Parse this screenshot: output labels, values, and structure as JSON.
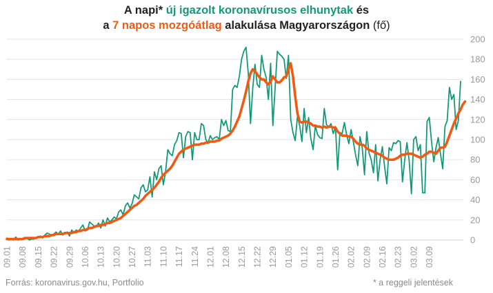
{
  "title": {
    "line1_a": "A napi* ",
    "line1_b": "új igazolt koronavírusos elhunytak",
    "line1_c": " és",
    "line2_a": "a ",
    "line2_b": "7 napos mozgóátlag",
    "line2_c": " alakulása Magyarországon",
    "line2_d": " (fő)"
  },
  "footer": {
    "source": "Forrás: koronavirus.gov.hu, Portfolio",
    "note": "* a reggeli jelentések"
  },
  "chart_data": {
    "type": "line",
    "x_start": "09.01",
    "x_step_days": 1,
    "ylim": [
      0,
      200
    ],
    "yticks": [
      0,
      20,
      40,
      60,
      80,
      100,
      120,
      140,
      160,
      180,
      200
    ],
    "xticks": [
      "09.01",
      "09.08",
      "09.15",
      "09.22",
      "09.29",
      "10.06",
      "10.13",
      "10.20",
      "10.27",
      "11.03",
      "11.10",
      "11.17",
      "11.24",
      "12.01",
      "12.08",
      "12.15",
      "12.22",
      "12.29",
      "01.05",
      "01.12",
      "01.19",
      "01.26",
      "02.02",
      "02.09",
      "02.16",
      "02.23",
      "03.02",
      "03.09"
    ],
    "grid": "horizontal",
    "colors": {
      "daily": "#129a78",
      "avg": "#f05a12",
      "grid": "#e3e3e3",
      "tick": "#9a9a9a"
    },
    "series": [
      {
        "key": "daily",
        "values": [
          2,
          0,
          1,
          0,
          3,
          0,
          1,
          1,
          1,
          2,
          0,
          1,
          1,
          2,
          3,
          4,
          2,
          5,
          7,
          6,
          4,
          6,
          8,
          6,
          9,
          5,
          7,
          8,
          4,
          10,
          7,
          10,
          8,
          12,
          15,
          9,
          10,
          18,
          16,
          14,
          13,
          17,
          12,
          20,
          14,
          22,
          18,
          20,
          23,
          21,
          28,
          30,
          25,
          34,
          37,
          32,
          36,
          45,
          43,
          41,
          52,
          55,
          48,
          50,
          63,
          43,
          68,
          60,
          71,
          74,
          55,
          68,
          90,
          86,
          84,
          95,
          99,
          107,
          106,
          82,
          103,
          108,
          107,
          80,
          107,
          100,
          100,
          116,
          114,
          100,
          97,
          104,
          100,
          102,
          103,
          100,
          120,
          114,
          119,
          109,
          108,
          150,
          154,
          152,
          163,
          180,
          188,
          192,
          166,
          116,
          151,
          175,
          155,
          152,
          184,
          170,
          162,
          140,
          176,
          114,
          151,
          188,
          185,
          183,
          180,
          161,
          184,
          120,
          107,
          99,
          123,
          114,
          98,
          131,
          107,
          122,
          101,
          90,
          114,
          105,
          102,
          101,
          131,
          115,
          112,
          116,
          106,
          113,
          70,
          107,
          106,
          117,
          105,
          96,
          110,
          98,
          85,
          74,
          103,
          92,
          65,
          108,
          87,
          80,
          67,
          95,
          59,
          80,
          93,
          73,
          56,
          92,
          89,
          97,
          96,
          99,
          98,
          58,
          80,
          97,
          79,
          46,
          100,
          103,
          89,
          95,
          47,
          47,
          118,
          122,
          98,
          78,
          92,
          102,
          86,
          71,
          113,
          119,
          152,
          140,
          145,
          110,
          119,
          158
        ],
        "note": "daily new confirmed deaths"
      },
      {
        "key": "avg",
        "values": [
          1,
          1,
          1,
          1,
          1,
          1,
          1,
          1,
          2,
          2,
          2,
          2,
          2,
          2,
          3,
          3,
          3,
          4,
          4,
          4,
          5,
          5,
          6,
          6,
          6,
          6,
          7,
          7,
          7,
          7,
          8,
          8,
          9,
          9,
          10,
          10,
          11,
          12,
          12,
          13,
          14,
          14,
          15,
          15,
          16,
          17,
          17,
          18,
          19,
          20,
          21,
          22,
          24,
          26,
          28,
          30,
          32,
          34,
          35,
          37,
          39,
          41,
          44,
          46,
          48,
          50,
          52,
          55,
          58,
          62,
          65,
          67,
          69,
          71,
          74,
          78,
          82,
          86,
          88,
          90,
          91,
          92,
          93,
          94,
          95,
          95,
          95,
          96,
          96,
          97,
          97,
          98,
          98,
          98,
          99,
          99,
          101,
          102,
          103,
          104,
          106,
          109,
          113,
          118,
          123,
          131,
          139,
          148,
          158,
          166,
          170,
          168,
          165,
          162,
          160,
          160,
          157,
          155,
          158,
          163,
          160,
          157,
          157,
          159,
          162,
          163,
          170,
          176,
          163,
          143,
          126,
          118,
          117,
          118,
          118,
          117,
          116,
          114,
          114,
          113,
          113,
          112,
          113,
          112,
          113,
          113,
          112,
          112,
          108,
          106,
          104,
          104,
          104,
          103,
          103,
          101,
          98,
          96,
          95,
          95,
          94,
          91,
          90,
          89,
          88,
          87,
          86,
          85,
          84,
          82,
          81,
          80,
          80,
          80,
          81,
          82,
          84,
          85,
          85,
          86,
          86,
          86,
          85,
          84,
          83,
          82,
          83,
          85,
          86,
          88,
          88,
          87,
          86,
          89,
          92,
          92,
          93,
          98,
          104,
          110,
          116,
          121,
          126,
          130,
          135,
          138
        ]
      }
    ]
  }
}
